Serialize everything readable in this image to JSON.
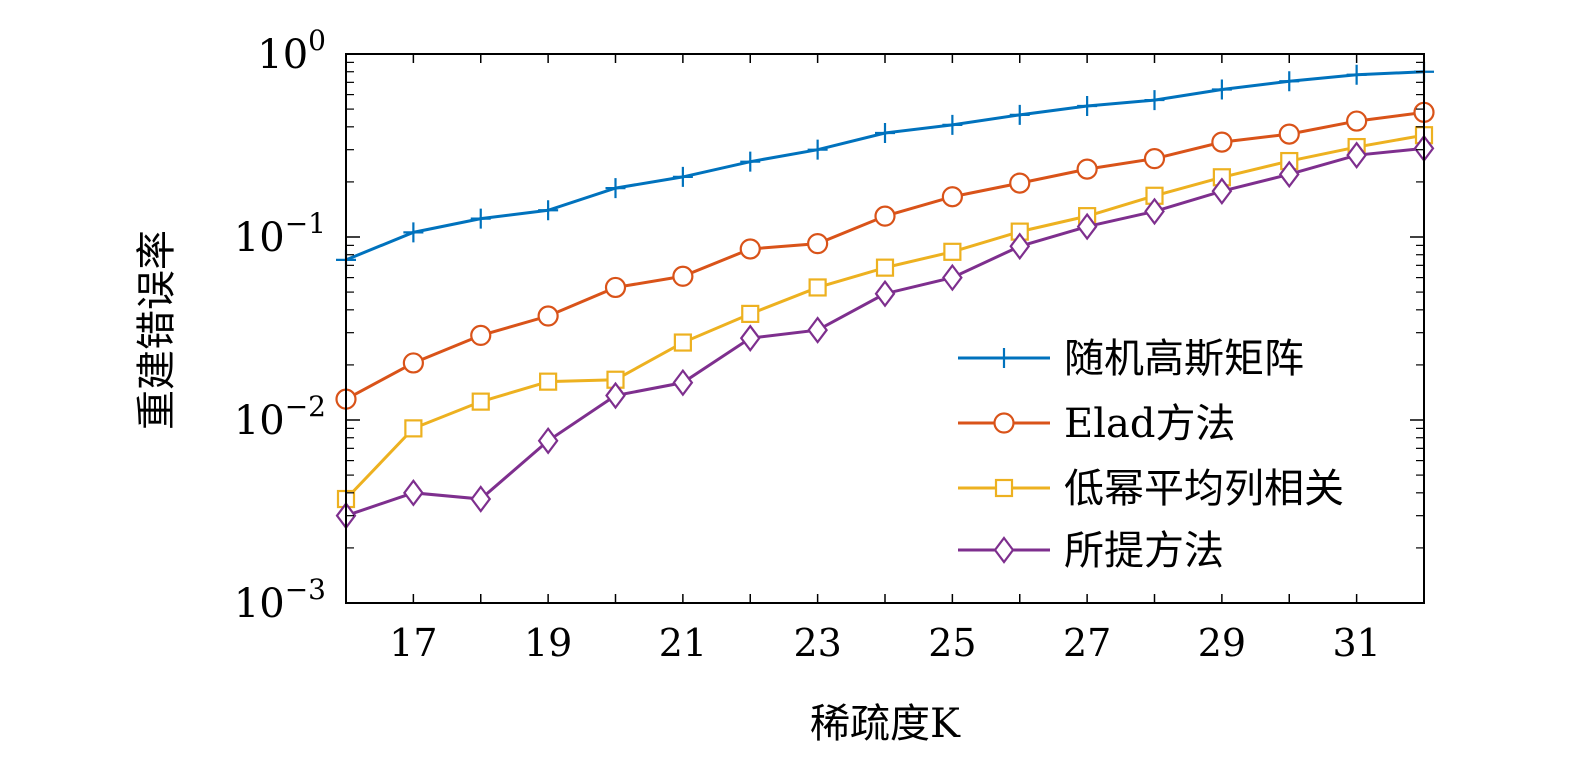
{
  "chart_data": {
    "type": "line",
    "title": "",
    "xlabel": "稀疏度K",
    "ylabel": "重建错误率",
    "x": [
      16,
      17,
      18,
      19,
      20,
      21,
      22,
      23,
      24,
      25,
      26,
      27,
      28,
      29,
      30,
      31,
      32
    ],
    "xlim": [
      16,
      32
    ],
    "xticks": [
      17,
      19,
      21,
      23,
      25,
      27,
      29,
      31
    ],
    "yscale": "log",
    "ylim": [
      0.001,
      1
    ],
    "yticks": [
      {
        "value": 1,
        "base": "10",
        "exp": "0"
      },
      {
        "value": 0.1,
        "base": "10",
        "exp": "−1"
      },
      {
        "value": 0.01,
        "base": "10",
        "exp": "−2"
      },
      {
        "value": 0.001,
        "base": "10",
        "exp": "−3"
      }
    ],
    "grid": false,
    "legend_position": "lower-right",
    "series": [
      {
        "name": "随机高斯矩阵",
        "color": "#0072BD",
        "marker": "plus",
        "values": [
          0.075,
          0.106,
          0.126,
          0.14,
          0.185,
          0.213,
          0.258,
          0.3,
          0.37,
          0.41,
          0.465,
          0.52,
          0.56,
          0.64,
          0.71,
          0.77,
          0.8
        ]
      },
      {
        "name": "Elad方法",
        "color": "#D95319",
        "marker": "circle",
        "values": [
          0.013,
          0.0205,
          0.029,
          0.037,
          0.053,
          0.061,
          0.086,
          0.092,
          0.13,
          0.166,
          0.197,
          0.235,
          0.268,
          0.33,
          0.365,
          0.43,
          0.48
        ]
      },
      {
        "name": "低幂平均列相关",
        "color": "#EDB120",
        "marker": "square",
        "values": [
          0.0037,
          0.009,
          0.0126,
          0.0162,
          0.0166,
          0.0265,
          0.038,
          0.053,
          0.068,
          0.083,
          0.107,
          0.13,
          0.168,
          0.212,
          0.26,
          0.31,
          0.36
        ]
      },
      {
        "name": "所提方法",
        "color": "#7E2F8E",
        "marker": "diamond",
        "values": [
          0.003,
          0.004,
          0.0037,
          0.0077,
          0.0136,
          0.016,
          0.028,
          0.031,
          0.049,
          0.06,
          0.089,
          0.114,
          0.138,
          0.178,
          0.22,
          0.28,
          0.305
        ]
      }
    ]
  }
}
